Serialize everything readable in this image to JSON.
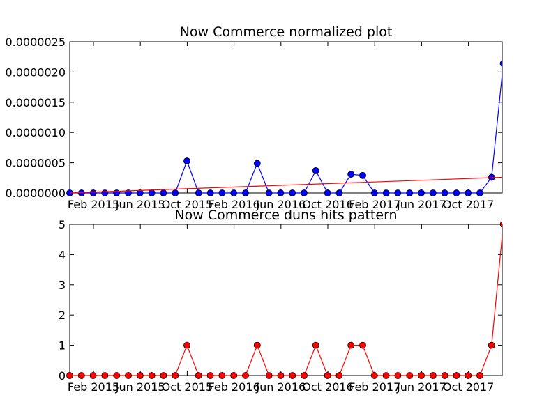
{
  "chart_data": [
    {
      "type": "line",
      "title": "Now Commerce normalized plot",
      "xlabel": "",
      "ylabel": "",
      "ylim": [
        0,
        2.5e-06
      ],
      "grid": false,
      "x": [
        "Dec 2014",
        "Jan 2015",
        "Feb 2015",
        "Mar 2015",
        "Apr 2015",
        "May 2015",
        "Jun 2015",
        "Jul 2015",
        "Aug 2015",
        "Sep 2015",
        "Oct 2015",
        "Nov 2015",
        "Dec 2015",
        "Jan 2016",
        "Feb 2016",
        "Mar 2016",
        "Apr 2016",
        "May 2016",
        "Jun 2016",
        "Jul 2016",
        "Aug 2016",
        "Sep 2016",
        "Oct 2016",
        "Nov 2016",
        "Dec 2016",
        "Jan 2017",
        "Feb 2017",
        "Mar 2017",
        "Apr 2017",
        "May 2017",
        "Jun 2017",
        "Jul 2017",
        "Aug 2017",
        "Sep 2017",
        "Oct 2017",
        "Nov 2017",
        "Dec 2017",
        "Jan 2018"
      ],
      "x_tick_labels": [
        "Feb 2015",
        "Jun 2015",
        "Oct 2015",
        "Feb 2016",
        "Jun 2016",
        "Oct 2016",
        "Feb 2017",
        "Jun 2017",
        "Oct 2017"
      ],
      "y_tick_labels": [
        "0.0000000",
        "0.0000005",
        "0.0000010",
        "0.0000015",
        "0.0000020",
        "0.0000025"
      ],
      "series": [
        {
          "color": "#0000ff",
          "marker": "circle",
          "values": [
            0,
            0,
            0,
            0,
            0,
            0,
            0,
            0,
            0,
            0,
            5.3e-07,
            0,
            0,
            0,
            0,
            0,
            4.9e-07,
            0,
            0,
            0,
            0,
            3.7e-07,
            0,
            0,
            3.1e-07,
            2.9e-07,
            0,
            0,
            0,
            0,
            0,
            0,
            0,
            0,
            0,
            0,
            2.6e-07,
            2.14e-06
          ]
        },
        {
          "color": "#ff0000",
          "marker": "none",
          "values_start": 0.0,
          "values_end": 2.6e-07
        }
      ]
    },
    {
      "type": "line",
      "title": "Now Commerce duns hits pattern",
      "xlabel": "",
      "ylabel": "",
      "ylim": [
        0,
        5
      ],
      "grid": false,
      "x": [
        "Dec 2014",
        "Jan 2015",
        "Feb 2015",
        "Mar 2015",
        "Apr 2015",
        "May 2015",
        "Jun 2015",
        "Jul 2015",
        "Aug 2015",
        "Sep 2015",
        "Oct 2015",
        "Nov 2015",
        "Dec 2015",
        "Jan 2016",
        "Feb 2016",
        "Mar 2016",
        "Apr 2016",
        "May 2016",
        "Jun 2016",
        "Jul 2016",
        "Aug 2016",
        "Sep 2016",
        "Oct 2016",
        "Nov 2016",
        "Dec 2016",
        "Jan 2017",
        "Feb 2017",
        "Mar 2017",
        "Apr 2017",
        "May 2017",
        "Jun 2017",
        "Jul 2017",
        "Aug 2017",
        "Sep 2017",
        "Oct 2017",
        "Nov 2017",
        "Dec 2017",
        "Jan 2018"
      ],
      "x_tick_labels": [
        "Feb 2015",
        "Jun 2015",
        "Oct 2015",
        "Feb 2016",
        "Jun 2016",
        "Oct 2016",
        "Feb 2017",
        "Jun 2017",
        "Oct 2017"
      ],
      "y_tick_labels": [
        "0",
        "1",
        "2",
        "3",
        "4",
        "5"
      ],
      "series": [
        {
          "color": "#ff0000",
          "marker": "circle",
          "values": [
            0,
            0,
            0,
            0,
            0,
            0,
            0,
            0,
            0,
            0,
            1,
            0,
            0,
            0,
            0,
            0,
            1,
            0,
            0,
            0,
            0,
            1,
            0,
            0,
            1,
            1,
            0,
            0,
            0,
            0,
            0,
            0,
            0,
            0,
            0,
            0,
            1,
            5
          ]
        }
      ]
    }
  ]
}
